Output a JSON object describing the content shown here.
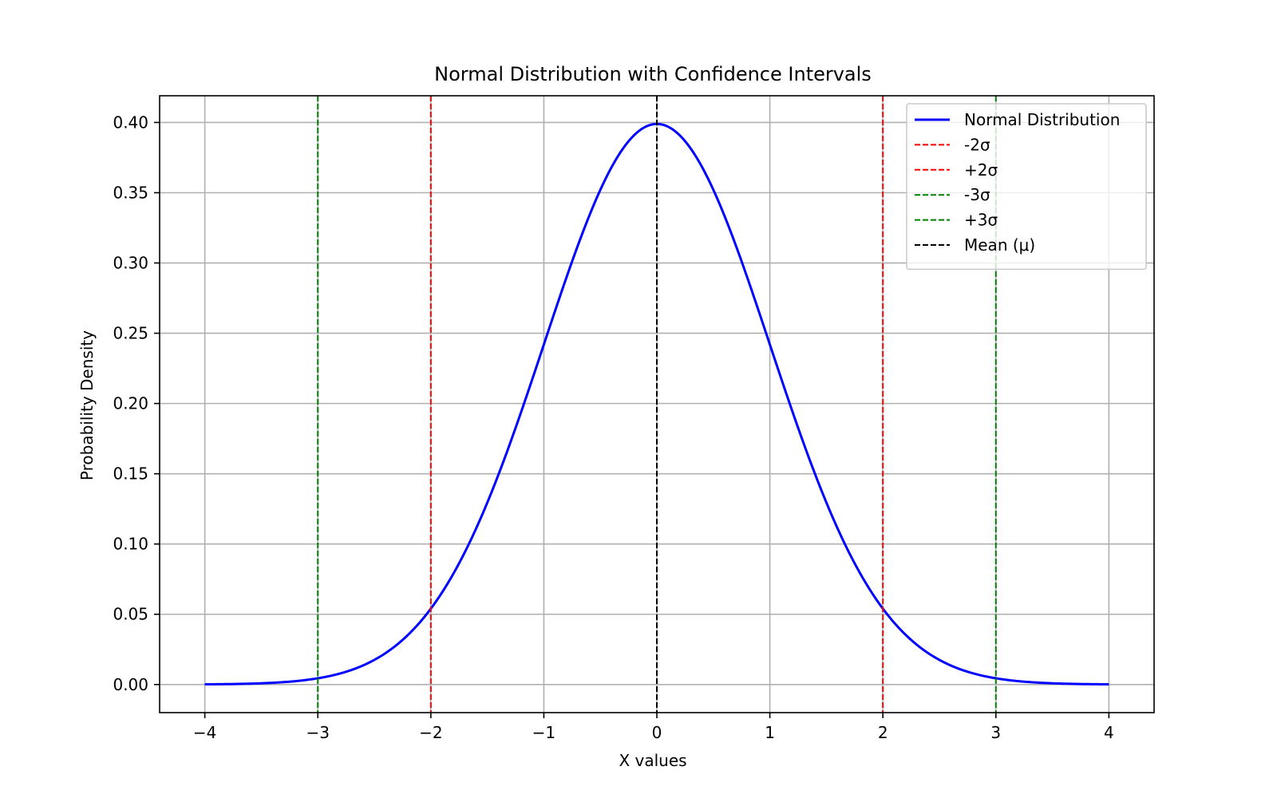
{
  "chart_data": {
    "type": "line",
    "title": "Normal Distribution with Confidence Intervals",
    "xlabel": "X values",
    "ylabel": "Probability Density",
    "xlim": [
      -4.4,
      4.4
    ],
    "ylim": [
      -0.02,
      0.419
    ],
    "xticks": [
      -4,
      -3,
      -2,
      -1,
      0,
      1,
      2,
      3,
      4
    ],
    "xtick_labels": [
      "−4",
      "−3",
      "−2",
      "−1",
      "0",
      "1",
      "2",
      "3",
      "4"
    ],
    "yticks": [
      0.0,
      0.05,
      0.1,
      0.15,
      0.2,
      0.25,
      0.3,
      0.35,
      0.4
    ],
    "ytick_labels": [
      "0.00",
      "0.05",
      "0.10",
      "0.15",
      "0.20",
      "0.25",
      "0.30",
      "0.35",
      "0.40"
    ],
    "grid": true,
    "legend_position": "top-right",
    "series": [
      {
        "name": "Normal Distribution",
        "color": "#0000ff",
        "style": "solid",
        "x": [
          -4.0,
          -3.5,
          -3.0,
          -2.5,
          -2.0,
          -1.75,
          -1.5,
          -1.25,
          -1.0,
          -0.75,
          -0.5,
          -0.25,
          0.0,
          0.25,
          0.5,
          0.75,
          1.0,
          1.25,
          1.5,
          1.75,
          2.0,
          2.5,
          3.0,
          3.5,
          4.0
        ],
        "y": [
          0.0001,
          0.0009,
          0.0044,
          0.0175,
          0.054,
          0.0863,
          0.1295,
          0.1826,
          0.242,
          0.3011,
          0.3521,
          0.3867,
          0.3989,
          0.3867,
          0.3521,
          0.3011,
          0.242,
          0.1826,
          0.1295,
          0.0863,
          0.054,
          0.0175,
          0.0044,
          0.0009,
          0.0001
        ]
      }
    ],
    "vlines": [
      {
        "name": "-2σ",
        "x": -2,
        "color": "#ff0000",
        "style": "dashed"
      },
      {
        "name": "+2σ",
        "x": 2,
        "color": "#ff0000",
        "style": "dashed"
      },
      {
        "name": "-3σ",
        "x": -3,
        "color": "#008000",
        "style": "dashed"
      },
      {
        "name": "+3σ",
        "x": 3,
        "color": "#008000",
        "style": "dashed"
      },
      {
        "name": "Mean (μ)",
        "x": 0,
        "color": "#000000",
        "style": "dashed"
      }
    ]
  }
}
